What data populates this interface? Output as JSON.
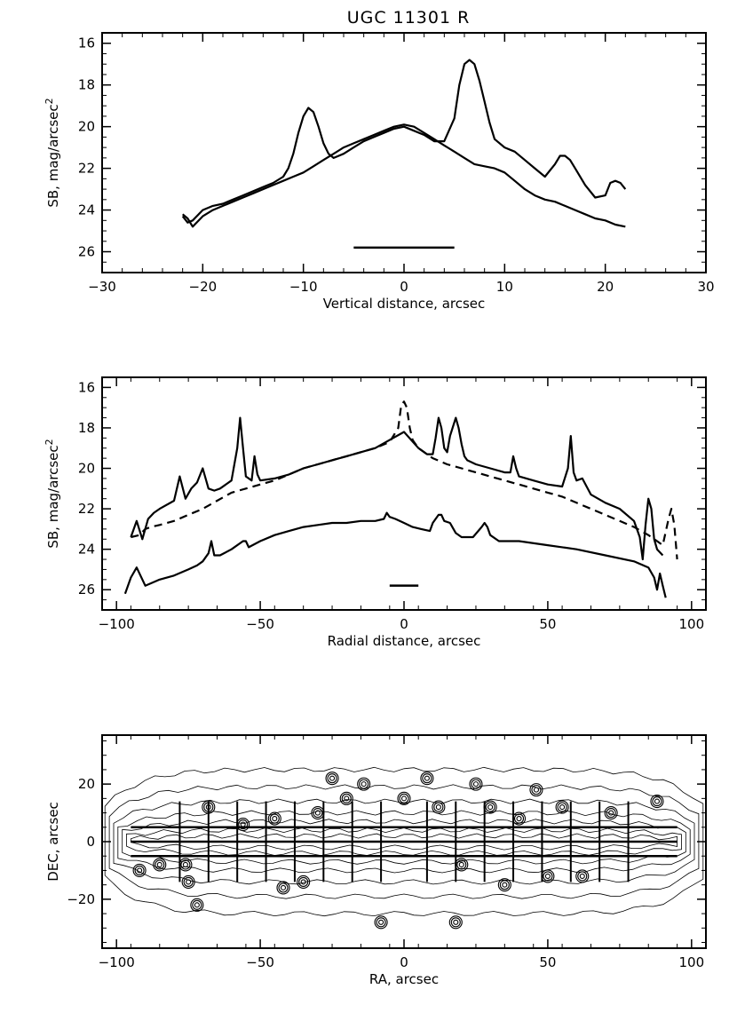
{
  "figure_title": "UGC 11301 R",
  "chart_data": [
    {
      "type": "line",
      "title": "UGC 11301 R",
      "xlabel": "Vertical distance, arcsec",
      "ylabel_main": "SB, mag/arcsec",
      "ylabel_sup": "2",
      "xlim": [
        -30,
        30
      ],
      "ylim": [
        27,
        15.5
      ],
      "xticks": [
        -30,
        -20,
        -10,
        0,
        10,
        20,
        30
      ],
      "xtick_labels": [
        "−30",
        "−20",
        "−10",
        "0",
        "10",
        "20",
        "30"
      ],
      "yticks": [
        16,
        18,
        20,
        22,
        24,
        26
      ],
      "ytick_labels": [
        "16",
        "18",
        "20",
        "22",
        "24",
        "26"
      ],
      "scale_bar": {
        "x": [
          -5,
          5
        ],
        "y": 25.8
      },
      "series": [
        {
          "name": "profile-with-peaks",
          "style": "solid",
          "x": [
            -22,
            -21.5,
            -21,
            -20,
            -19,
            -18,
            -17,
            -16,
            -15,
            -14,
            -13,
            -12,
            -11.5,
            -11,
            -10.5,
            -10,
            -9.5,
            -9,
            -8.5,
            -8,
            -7.5,
            -7,
            -6,
            -5,
            -4,
            -3,
            -2,
            -1,
            0,
            1,
            2,
            3,
            4,
            5,
            5.5,
            6,
            6.5,
            7,
            7.5,
            8,
            8.5,
            9,
            10,
            11,
            12,
            13,
            14,
            15,
            15.5,
            16,
            16.5,
            17,
            18,
            19,
            20,
            20.5,
            21,
            21.5,
            22
          ],
          "y": [
            24.3,
            24.6,
            24.5,
            24.0,
            23.8,
            23.7,
            23.5,
            23.3,
            23.1,
            22.9,
            22.7,
            22.4,
            22.0,
            21.3,
            20.3,
            19.5,
            19.1,
            19.3,
            20.0,
            20.8,
            21.3,
            21.5,
            21.3,
            21.0,
            20.7,
            20.5,
            20.3,
            20.1,
            20.0,
            20.2,
            20.4,
            20.7,
            20.7,
            19.6,
            18.0,
            17.0,
            16.8,
            17.0,
            17.8,
            18.8,
            19.8,
            20.6,
            21.0,
            21.2,
            21.6,
            22.0,
            22.4,
            21.8,
            21.4,
            21.4,
            21.6,
            22.0,
            22.8,
            23.4,
            23.3,
            22.7,
            22.6,
            22.7,
            23.0
          ]
        },
        {
          "name": "smooth-profile",
          "style": "solid",
          "x": [
            -22,
            -21.5,
            -21,
            -20,
            -19,
            -18,
            -17,
            -16,
            -15,
            -14,
            -13,
            -12,
            -11,
            -10,
            -9,
            -8,
            -7,
            -6,
            -5,
            -4,
            -3,
            -2,
            -1,
            0,
            1,
            2,
            3,
            4,
            5,
            6,
            7,
            8,
            9,
            10,
            11,
            12,
            13,
            14,
            15,
            16,
            17,
            18,
            19,
            20,
            21,
            22
          ],
          "y": [
            24.2,
            24.4,
            24.8,
            24.3,
            24.0,
            23.8,
            23.6,
            23.4,
            23.2,
            23.0,
            22.8,
            22.6,
            22.4,
            22.2,
            21.9,
            21.6,
            21.3,
            21.0,
            20.8,
            20.6,
            20.4,
            20.2,
            20.0,
            19.9,
            20.0,
            20.3,
            20.6,
            20.9,
            21.2,
            21.5,
            21.8,
            21.9,
            22.0,
            22.2,
            22.6,
            23.0,
            23.3,
            23.5,
            23.6,
            23.8,
            24.0,
            24.2,
            24.4,
            24.5,
            24.7,
            24.8
          ]
        }
      ]
    },
    {
      "type": "line",
      "title": "",
      "xlabel": "Radial distance, arcsec",
      "ylabel_main": "SB, mag/arcsec",
      "ylabel_sup": "2",
      "xlim": [
        -105,
        105
      ],
      "ylim": [
        27,
        15.5
      ],
      "xticks": [
        -100,
        -50,
        0,
        50,
        100
      ],
      "xtick_labels": [
        "−100",
        "−50",
        "0",
        "50",
        "100"
      ],
      "yticks": [
        16,
        18,
        20,
        22,
        24,
        26
      ],
      "ytick_labels": [
        "16",
        "18",
        "20",
        "22",
        "24",
        "26"
      ],
      "scale_bar": {
        "x": [
          -5,
          5
        ],
        "y": 25.8
      },
      "series": [
        {
          "name": "midplane-profile",
          "style": "solid",
          "x": [
            -95,
            -93,
            -91,
            -89,
            -87,
            -85,
            -80,
            -78,
            -76,
            -74,
            -72,
            -70,
            -68,
            -66,
            -64,
            -60,
            -58,
            -57,
            -56,
            -55,
            -53,
            -52,
            -51,
            -50,
            -45,
            -40,
            -35,
            -30,
            -25,
            -20,
            -15,
            -10,
            -5,
            0,
            5,
            8,
            10,
            11,
            12,
            13,
            14,
            15,
            16,
            18,
            19,
            20,
            21,
            22,
            25,
            30,
            35,
            37,
            38,
            39,
            40,
            45,
            50,
            55,
            57,
            58,
            59,
            60,
            62,
            65,
            70,
            75,
            80,
            82,
            83,
            84,
            85,
            86,
            87,
            88,
            90
          ],
          "y": [
            23.4,
            22.6,
            23.5,
            22.5,
            22.2,
            22.0,
            21.6,
            20.4,
            21.5,
            21.0,
            20.7,
            20.0,
            21.0,
            21.1,
            21.0,
            20.6,
            19.0,
            17.5,
            19.0,
            20.4,
            20.6,
            19.4,
            20.3,
            20.6,
            20.5,
            20.3,
            20.0,
            19.8,
            19.6,
            19.4,
            19.2,
            19.0,
            18.6,
            18.2,
            19.0,
            19.3,
            19.3,
            18.5,
            17.5,
            18.0,
            19.0,
            19.2,
            18.4,
            17.5,
            18.0,
            18.8,
            19.4,
            19.6,
            19.8,
            20.0,
            20.2,
            20.2,
            19.4,
            20.0,
            20.4,
            20.6,
            20.8,
            20.9,
            20.0,
            18.4,
            20.2,
            20.6,
            20.5,
            21.3,
            21.7,
            22.0,
            22.6,
            23.4,
            24.5,
            22.8,
            21.5,
            22.0,
            23.5,
            24.0,
            24.3
          ]
        },
        {
          "name": "dashed-profile",
          "style": "dashed",
          "x": [
            -95,
            -92,
            -90,
            -88,
            -85,
            -80,
            -75,
            -70,
            -65,
            -60,
            -55,
            -50,
            -45,
            -40,
            -35,
            -30,
            -25,
            -20,
            -15,
            -10,
            -5,
            -2,
            -1,
            0,
            1,
            2,
            3,
            5,
            8,
            10,
            15,
            20,
            25,
            30,
            35,
            40,
            45,
            50,
            55,
            60,
            65,
            70,
            75,
            80,
            85,
            88,
            90,
            92,
            93,
            94,
            95
          ],
          "y": [
            23.4,
            23.3,
            23.0,
            22.9,
            22.8,
            22.6,
            22.3,
            22.0,
            21.6,
            21.2,
            21.0,
            20.8,
            20.6,
            20.3,
            20.0,
            19.8,
            19.6,
            19.4,
            19.2,
            19.0,
            18.7,
            18.0,
            16.9,
            16.7,
            17.0,
            18.0,
            18.6,
            19.0,
            19.3,
            19.5,
            19.8,
            20.0,
            20.2,
            20.4,
            20.6,
            20.8,
            21.0,
            21.2,
            21.4,
            21.7,
            22.0,
            22.3,
            22.6,
            22.9,
            23.3,
            23.6,
            23.8,
            22.5,
            22.0,
            22.8,
            24.5
          ]
        },
        {
          "name": "offplane-profile",
          "style": "solid",
          "x": [
            -97,
            -95,
            -93,
            -90,
            -85,
            -80,
            -75,
            -72,
            -70,
            -68,
            -67,
            -66,
            -64,
            -60,
            -56,
            -55,
            -54,
            -50,
            -45,
            -40,
            -35,
            -30,
            -25,
            -20,
            -15,
            -10,
            -7,
            -6,
            -5,
            -3,
            0,
            3,
            6,
            9,
            10,
            12,
            13,
            14,
            16,
            18,
            20,
            24,
            27,
            28,
            29,
            30,
            33,
            40,
            50,
            60,
            70,
            80,
            85,
            87,
            88,
            89,
            90,
            91
          ],
          "y": [
            26.2,
            25.4,
            24.9,
            25.8,
            25.5,
            25.3,
            25.0,
            24.8,
            24.6,
            24.2,
            23.6,
            24.3,
            24.3,
            24.0,
            23.6,
            23.6,
            23.9,
            23.6,
            23.3,
            23.1,
            22.9,
            22.8,
            22.7,
            22.7,
            22.6,
            22.6,
            22.5,
            22.2,
            22.4,
            22.5,
            22.7,
            22.9,
            23.0,
            23.1,
            22.7,
            22.3,
            22.3,
            22.6,
            22.7,
            23.2,
            23.4,
            23.4,
            22.9,
            22.7,
            22.9,
            23.3,
            23.6,
            23.6,
            23.8,
            24.0,
            24.3,
            24.6,
            24.9,
            25.4,
            26.0,
            25.2,
            25.8,
            26.4
          ]
        }
      ]
    },
    {
      "type": "contour",
      "title": "",
      "xlabel": "RA, arcsec",
      "ylabel_main": "DEC, arcsec",
      "xlim": [
        -105,
        105
      ],
      "ylim": [
        -37,
        37
      ],
      "xticks": [
        -100,
        -50,
        0,
        50,
        100
      ],
      "xtick_labels": [
        "−100",
        "−50",
        "0",
        "50",
        "100"
      ],
      "yticks": [
        -20,
        0,
        20
      ],
      "ytick_labels": [
        "−20",
        "0",
        "20"
      ],
      "horizontal_lines_dec": [
        5,
        0,
        -5
      ],
      "horizontal_lines_ra_range": [
        -95,
        95
      ],
      "cut_positions_ra": [
        -78,
        -68,
        -58,
        -48,
        -38,
        -28,
        -18,
        -8,
        8,
        18,
        28,
        38,
        48,
        58,
        68,
        78
      ],
      "knot_positions": [
        [
          -68,
          12
        ],
        [
          -76,
          -8
        ],
        [
          -72,
          -22
        ],
        [
          -42,
          -16
        ],
        [
          -35,
          -14
        ],
        [
          -25,
          22
        ],
        [
          -14,
          20
        ],
        [
          -30,
          10
        ],
        [
          -8,
          -28
        ],
        [
          18,
          -28
        ],
        [
          12,
          12
        ],
        [
          30,
          12
        ],
        [
          40,
          8
        ],
        [
          55,
          12
        ],
        [
          62,
          -12
        ],
        [
          20,
          -8
        ],
        [
          8,
          22
        ],
        [
          -56,
          6
        ],
        [
          -85,
          -8
        ],
        [
          -75,
          -14
        ],
        [
          -45,
          8
        ],
        [
          25,
          20
        ],
        [
          46,
          18
        ],
        [
          72,
          10
        ],
        [
          88,
          14
        ],
        [
          -92,
          -10
        ],
        [
          0,
          15
        ],
        [
          -20,
          15
        ],
        [
          35,
          -15
        ],
        [
          50,
          -12
        ]
      ],
      "isophote_half_heights": [
        2,
        4,
        7,
        10,
        14,
        19,
        25
      ]
    }
  ]
}
